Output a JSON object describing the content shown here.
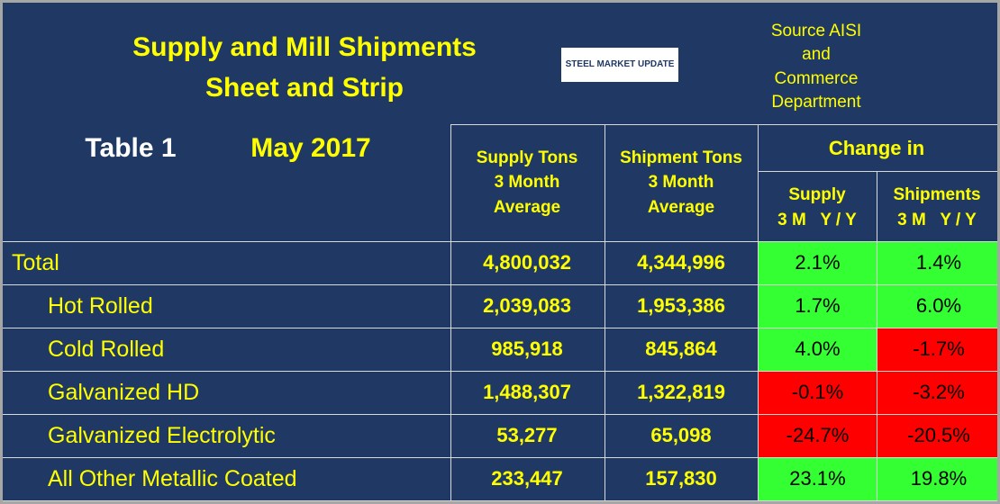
{
  "header": {
    "title_lines": [
      "Supply and Mill Shipments",
      "Sheet and Strip"
    ],
    "table_label": "Table 1",
    "date": "May 2017",
    "logo": "STEEL MARKET UPDATE",
    "source_lines": [
      "Source AISI",
      "and",
      "Commerce",
      "Department"
    ]
  },
  "table": {
    "columns": {
      "supply": [
        "Supply Tons",
        "3 Month",
        "Average"
      ],
      "shipments": [
        "Shipment Tons",
        "3 Month",
        "Average"
      ],
      "change_group": "Change in",
      "change_supply": [
        "Supply",
        "3 M   Y / Y"
      ],
      "change_shipments": [
        "Shipments",
        "3 M   Y / Y"
      ]
    },
    "rows": [
      {
        "label": "Total",
        "supply": "4,800,032",
        "shipments": "4,344,996",
        "supply_change": "2.1%",
        "shipments_change": "1.4%",
        "supply_change_color": "#33ff33",
        "shipments_change_color": "#33ff33"
      },
      {
        "label": "Hot Rolled",
        "supply": "2,039,083",
        "shipments": "1,953,386",
        "supply_change": "1.7%",
        "shipments_change": "6.0%",
        "supply_change_color": "#33ff33",
        "shipments_change_color": "#33ff33"
      },
      {
        "label": "Cold Rolled",
        "supply": "985,918",
        "shipments": "845,864",
        "supply_change": "4.0%",
        "shipments_change": "-1.7%",
        "supply_change_color": "#33ff33",
        "shipments_change_color": "#ff0000"
      },
      {
        "label": "Galvanized HD",
        "supply": "1,488,307",
        "shipments": "1,322,819",
        "supply_change": "-0.1%",
        "shipments_change": "-3.2%",
        "supply_change_color": "#ff0000",
        "shipments_change_color": "#ff0000"
      },
      {
        "label": "Galvanized Electrolytic",
        "supply": "53,277",
        "shipments": "65,098",
        "supply_change": "-24.7%",
        "shipments_change": "-20.5%",
        "supply_change_color": "#ff0000",
        "shipments_change_color": "#ff0000"
      },
      {
        "label": "All Other Metallic Coated",
        "supply": "233,447",
        "shipments": "157,830",
        "supply_change": "23.1%",
        "shipments_change": "19.8%",
        "supply_change_color": "#33ff33",
        "shipments_change_color": "#33ff33"
      }
    ]
  }
}
